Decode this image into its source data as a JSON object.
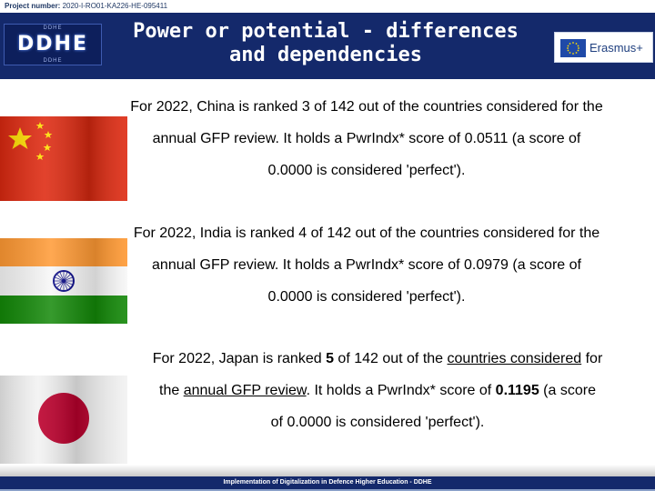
{
  "project": {
    "label": "Project number:",
    "number": "2020-I-RO01-KA226-HE-095411"
  },
  "header": {
    "logo_text": "DDHE",
    "logo_top": "DDHE",
    "logo_bottom": "DDHE",
    "title_line1": "Power or potential - differences",
    "title_line2": "and dependencies",
    "partner_logo": "Erasmus+"
  },
  "colors": {
    "header_bg": "#14296b",
    "china_red": "#de2910",
    "china_star": "#ffde00",
    "india_saffron": "#ff9933",
    "india_green": "#138808",
    "india_chakra": "#000080",
    "japan_red": "#bc002d"
  },
  "paragraphs": {
    "china": {
      "line1": "For 2022, China is ranked 3 of 142 out of the countries considered for the",
      "line2": "annual GFP review. It holds a PwrIndx* score of 0.0511 (a score of",
      "line3": "0.0000 is considered 'perfect')."
    },
    "india": {
      "line1": "For 2022, India is ranked 4 of 142 out of the countries considered for the",
      "line2": "annual GFP review. It holds a PwrIndx* score of 0.0979 (a score of",
      "line3": "0.0000 is considered 'perfect')."
    },
    "japan": {
      "l1a": "For 2022, Japan is ranked ",
      "rank": "5",
      "l1b": " of 142 out of the ",
      "link1": "countries considered",
      "l1c": " for",
      "l2a": "the ",
      "link2": "annual GFP review",
      "l2b": ". It holds a PwrIndx* score of ",
      "score": "0.1195",
      "l2c": " (a score",
      "line3": "of 0.0000 is considered 'perfect')."
    }
  },
  "footer": {
    "text": "Implementation of Digitalization in Defence Higher Education - DDHE"
  }
}
